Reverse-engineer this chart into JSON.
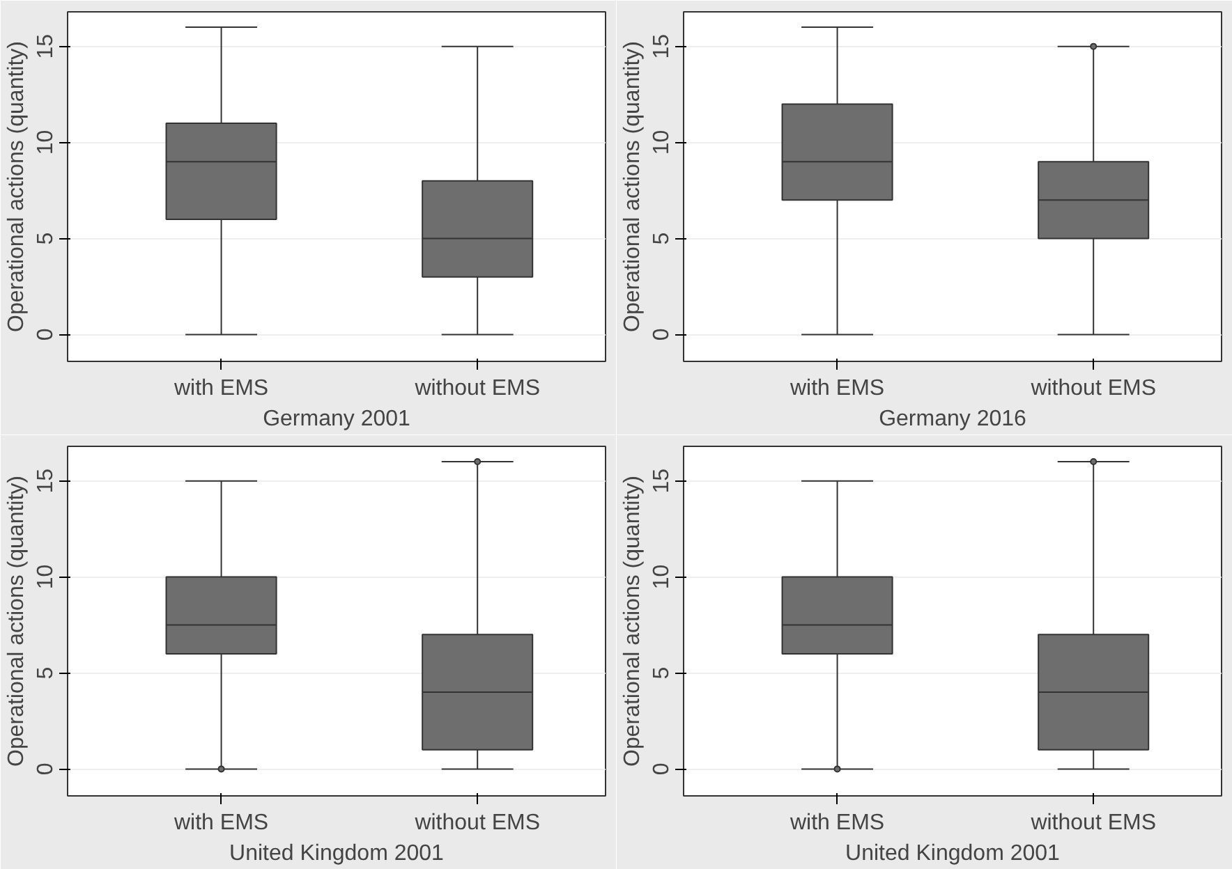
{
  "chart_data": [
    {
      "type": "box",
      "categories": [
        "with EMS",
        "without EMS"
      ],
      "xlabel": "Germany 2001",
      "ylabel": "Operational actions (quantity)",
      "ylim": [
        -1.4,
        16.8
      ],
      "yticks": [
        0,
        5,
        10,
        15
      ],
      "grid": "y",
      "color": "#6e6e6e",
      "boxes": [
        {
          "low": 0,
          "q1": 6,
          "median": 9,
          "q3": 11,
          "high": 16
        },
        {
          "low": 0,
          "q1": 3,
          "median": 5,
          "q3": 8,
          "high": 15
        }
      ]
    },
    {
      "type": "box",
      "categories": [
        "with EMS",
        "without EMS"
      ],
      "xlabel": "Germany 2016",
      "ylabel": "Operational actions (quantity)",
      "ylim": [
        -1.4,
        16.8
      ],
      "yticks": [
        0,
        5,
        10,
        15
      ],
      "grid": "y",
      "color": "#6e6e6e",
      "boxes": [
        {
          "low": 0,
          "q1": 7,
          "median": 9,
          "q3": 12,
          "high": 16
        },
        {
          "low": 0,
          "q1": 5,
          "median": 7,
          "q3": 9,
          "high": 15,
          "outliers": [
            15
          ]
        }
      ]
    },
    {
      "type": "box",
      "categories": [
        "with EMS",
        "without EMS"
      ],
      "xlabel": "United Kingdom 2001",
      "ylabel": "Operational actions (quantity)",
      "ylim": [
        -1.4,
        16.8
      ],
      "yticks": [
        0,
        5,
        10,
        15
      ],
      "grid": "y",
      "color": "#6e6e6e",
      "boxes": [
        {
          "low": 0,
          "q1": 6,
          "median": 7.5,
          "q3": 10,
          "high": 15,
          "outliers": [
            0
          ]
        },
        {
          "low": 0,
          "q1": 1,
          "median": 4,
          "q3": 7,
          "high": 16,
          "outliers": [
            16
          ]
        }
      ]
    },
    {
      "type": "box",
      "categories": [
        "with EMS",
        "without EMS"
      ],
      "xlabel": "United Kingdom 2001",
      "ylabel": "Operational actions (quantity)",
      "ylim": [
        -1.4,
        16.8
      ],
      "yticks": [
        0,
        5,
        10,
        15
      ],
      "grid": "y",
      "color": "#6e6e6e",
      "boxes": [
        {
          "low": 0,
          "q1": 6,
          "median": 7.5,
          "q3": 10,
          "high": 15,
          "outliers": [
            0
          ]
        },
        {
          "low": 0,
          "q1": 1,
          "median": 4,
          "q3": 7,
          "high": 16,
          "outliers": [
            16
          ]
        }
      ]
    }
  ]
}
